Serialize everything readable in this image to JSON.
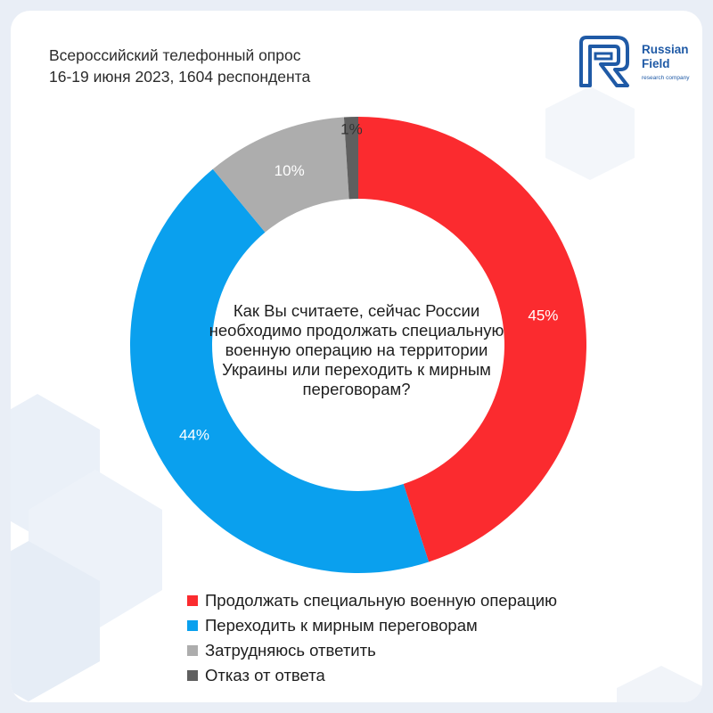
{
  "header": {
    "line1": "Всероссийский телефонный опрос",
    "line2": "16-19 июня 2023, 1604 респондента"
  },
  "logo": {
    "line1": "Russian",
    "line2": "Field",
    "tagline": "research company",
    "color": "#1f5aa6"
  },
  "question": "Как Вы считаете, сейчас России необходимо продолжать специальную военную операцию на территории Украины или переходить к мирным переговорам?",
  "chart_data": {
    "type": "pie",
    "donut": true,
    "start_angle_deg": 0,
    "direction": "clockwise",
    "categories": [
      "Продолжать специальную военную операцию",
      "Переходить к мирным переговорам",
      "Затрудняюсь ответить",
      "Отказ от ответа"
    ],
    "values": [
      45,
      44,
      10,
      1
    ],
    "labels": [
      "45%",
      "44%",
      "10%",
      "1%"
    ],
    "colors": [
      "#fb2b2f",
      "#0aa0ee",
      "#adadad",
      "#5f5f5f"
    ],
    "label_colors": [
      "#ffffff",
      "#ffffff",
      "#ffffff",
      "#333333"
    ],
    "legend_position": "bottom"
  }
}
